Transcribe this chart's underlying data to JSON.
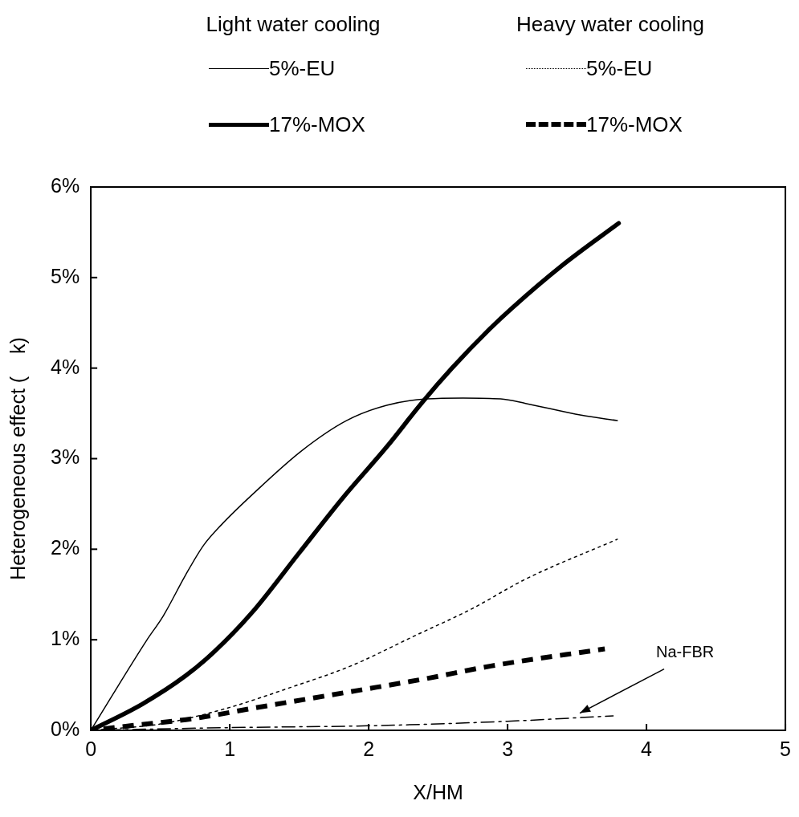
{
  "chart_data": {
    "type": "line",
    "xlabel": "X/HM",
    "ylabel": "Heterogeneous effect (    k)",
    "xlim": [
      0,
      5
    ],
    "xticks": [
      0,
      1,
      2,
      3,
      4,
      5
    ],
    "ylim": [
      0,
      0.06
    ],
    "yticks": [
      {
        "value": 0,
        "label": "0%"
      },
      {
        "value": 0.01,
        "label": "1%"
      },
      {
        "value": 0.02,
        "label": "2%"
      },
      {
        "value": 0.03,
        "label": "3%"
      },
      {
        "value": 0.04,
        "label": "4%"
      },
      {
        "value": 0.05,
        "label": "5%"
      },
      {
        "value": 0.06,
        "label": "6%"
      }
    ],
    "grid": false,
    "legend": "top",
    "marker": "none",
    "annotations": [
      "Light water cooling",
      "Heavy water cooling",
      {
        "text": "Na-FBR",
        "x": 3.52,
        "y": 0.0019
      }
    ],
    "series": [
      {
        "name": "5%-EU",
        "color": "#000000",
        "line_style": "solid",
        "x": [
          0,
          0.4,
          0.52,
          0.68,
          0.81,
          0.94,
          1.16,
          1.52,
          1.84,
          2.13,
          2.42,
          2.68,
          2.95,
          3.13,
          3.53,
          3.79
        ],
        "values": [
          0,
          0.0099,
          0.0126,
          0.0171,
          0.0204,
          0.0227,
          0.026,
          0.0309,
          0.0342,
          0.0359,
          0.0366,
          0.0367,
          0.0366,
          0.0361,
          0.0348,
          0.0342
        ]
      },
      {
        "name": "17%-MOX",
        "color": "#000000",
        "line_style": "solid",
        "x": [
          0,
          0.37,
          0.68,
          0.89,
          1.16,
          1.5,
          1.81,
          2.13,
          2.39,
          2.6,
          2.87,
          3.03,
          3.39,
          3.8
        ],
        "values": [
          0,
          0.0029,
          0.006,
          0.0087,
          0.013,
          0.0196,
          0.0256,
          0.0313,
          0.0363,
          0.04,
          0.0443,
          0.0466,
          0.0513,
          0.056
        ]
      },
      {
        "name": "5%-EU",
        "color": "#000000",
        "line_style": "dotted",
        "x": [
          0,
          0.5,
          0.97,
          1.45,
          1.87,
          2.34,
          2.74,
          3.13,
          3.79
        ],
        "values": [
          0,
          0.0007,
          0.0024,
          0.0048,
          0.0071,
          0.0105,
          0.0134,
          0.0167,
          0.0211
        ]
      },
      {
        "name": "17%-MOX",
        "color": "#000000",
        "line_style": "dashed",
        "x": [
          0,
          0.34,
          0.74,
          1.19,
          1.92,
          2.41,
          2.88,
          3.7
        ],
        "values": [
          0,
          0.0006,
          0.0013,
          0.0025,
          0.0044,
          0.0057,
          0.0071,
          0.009
        ]
      },
      {
        "color": "#000000",
        "line_style": "dashdot",
        "x": [
          0,
          1,
          2,
          3,
          3.76
        ],
        "values": [
          0,
          0.0003,
          0.0005,
          0.001,
          0.0016
        ]
      }
    ]
  }
}
